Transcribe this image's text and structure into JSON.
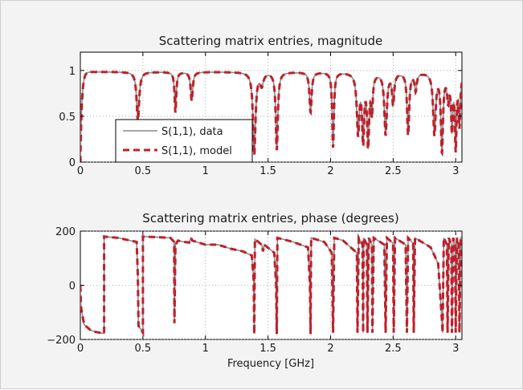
{
  "chart_data": [
    {
      "type": "line",
      "title": "Scattering matrix entries, magnitude",
      "xlabel": "",
      "ylabel": "",
      "xlim": [
        0,
        3.05
      ],
      "ylim": [
        0,
        1.2
      ],
      "xticks": [
        0,
        0.5,
        1,
        1.5,
        2,
        2.5,
        3
      ],
      "xtick_labels": [
        "0",
        "0.5",
        "1",
        "1.5",
        "2",
        "2.5",
        "3"
      ],
      "yticks": [
        0,
        0.5,
        1
      ],
      "ytick_labels": [
        "0",
        "0.5",
        "1"
      ],
      "grid": true,
      "legend_position": "lower-left",
      "baseline": 0.985,
      "resonances": [
        {
          "f": 0.46,
          "min": 0.45,
          "w": 0.012
        },
        {
          "f": 0.76,
          "min": 0.55,
          "w": 0.008
        },
        {
          "f": 0.89,
          "min": 0.68,
          "w": 0.01
        },
        {
          "f": 1.39,
          "min": 0.08,
          "w": 0.012
        },
        {
          "f": 1.45,
          "min": 0.86,
          "w": 0.015
        },
        {
          "f": 1.57,
          "min": 0.13,
          "w": 0.01
        },
        {
          "f": 1.84,
          "min": 0.55,
          "w": 0.01
        },
        {
          "f": 2.02,
          "min": 0.16,
          "w": 0.008
        },
        {
          "f": 2.22,
          "min": 0.3,
          "w": 0.012
        },
        {
          "f": 2.26,
          "min": 0.2,
          "w": 0.01
        },
        {
          "f": 2.3,
          "min": 0.16,
          "w": 0.01
        },
        {
          "f": 2.33,
          "min": 0.55,
          "w": 0.008
        },
        {
          "f": 2.44,
          "min": 0.3,
          "w": 0.012
        },
        {
          "f": 2.5,
          "min": 0.65,
          "w": 0.01
        },
        {
          "f": 2.62,
          "min": 0.3,
          "w": 0.01
        },
        {
          "f": 2.68,
          "min": 0.8,
          "w": 0.01
        },
        {
          "f": 2.83,
          "min": 0.3,
          "w": 0.012
        },
        {
          "f": 2.89,
          "min": 0.1,
          "w": 0.01
        },
        {
          "f": 2.94,
          "min": 0.7,
          "w": 0.01
        },
        {
          "f": 2.97,
          "min": 0.35,
          "w": 0.008
        },
        {
          "f": 3.0,
          "min": 0.12,
          "w": 0.008
        },
        {
          "f": 3.03,
          "min": 0.4,
          "w": 0.008
        }
      ],
      "series": [
        {
          "name": "S(1,1), data",
          "color": "#8c8c8c",
          "style": "solid"
        },
        {
          "name": "S(1,1), model",
          "color": "#c0202a",
          "style": "dashed"
        }
      ]
    },
    {
      "type": "line",
      "title": "Scattering matrix entries, phase (degrees)",
      "xlabel": "Frequency [GHz]",
      "ylabel": "",
      "xlim": [
        0,
        3.05
      ],
      "ylim": [
        -200,
        200
      ],
      "xticks": [
        0,
        0.5,
        1,
        1.5,
        2,
        2.5,
        3
      ],
      "xtick_labels": [
        "0",
        "0.5",
        "1",
        "1.5",
        "2",
        "2.5",
        "3"
      ],
      "yticks": [
        -200,
        0,
        200
      ],
      "ytick_labels": [
        "−200",
        "0",
        "200"
      ],
      "grid": true,
      "points": [
        [
          0.0,
          0
        ],
        [
          0.005,
          -80
        ],
        [
          0.03,
          -145
        ],
        [
          0.08,
          -165
        ],
        [
          0.12,
          -172
        ],
        [
          0.19,
          -178
        ],
        [
          0.19,
          180
        ],
        [
          0.3,
          175
        ],
        [
          0.45,
          160
        ],
        [
          0.46,
          30
        ],
        [
          0.465,
          -150
        ],
        [
          0.5,
          -175
        ],
        [
          0.5,
          180
        ],
        [
          0.6,
          178
        ],
        [
          0.72,
          175
        ],
        [
          0.75,
          160
        ],
        [
          0.752,
          -140
        ],
        [
          0.76,
          150
        ],
        [
          0.78,
          165
        ],
        [
          0.83,
          160
        ],
        [
          0.87,
          158
        ],
        [
          0.885,
          175
        ],
        [
          0.895,
          165
        ],
        [
          1.0,
          150
        ],
        [
          1.1,
          150
        ],
        [
          1.2,
          135
        ],
        [
          1.3,
          125
        ],
        [
          1.37,
          110
        ],
        [
          1.385,
          20
        ],
        [
          1.39,
          -180
        ],
        [
          1.395,
          170
        ],
        [
          1.45,
          150
        ],
        [
          1.46,
          125
        ],
        [
          1.47,
          150
        ],
        [
          1.55,
          120
        ],
        [
          1.565,
          0
        ],
        [
          1.57,
          -180
        ],
        [
          1.575,
          175
        ],
        [
          1.7,
          160
        ],
        [
          1.82,
          140
        ],
        [
          1.835,
          0
        ],
        [
          1.84,
          -180
        ],
        [
          1.845,
          175
        ],
        [
          1.95,
          160
        ],
        [
          2.01,
          120
        ],
        [
          2.02,
          -175
        ],
        [
          2.03,
          175
        ],
        [
          2.1,
          165
        ],
        [
          2.21,
          120
        ],
        [
          2.215,
          -175
        ],
        [
          2.225,
          175
        ],
        [
          2.255,
          150
        ],
        [
          2.26,
          -175
        ],
        [
          2.265,
          175
        ],
        [
          2.29,
          150
        ],
        [
          2.295,
          -175
        ],
        [
          2.305,
          175
        ],
        [
          2.33,
          150
        ],
        [
          2.335,
          -175
        ],
        [
          2.345,
          175
        ],
        [
          2.43,
          150
        ],
        [
          2.44,
          -175
        ],
        [
          2.45,
          175
        ],
        [
          2.5,
          155
        ],
        [
          2.505,
          -175
        ],
        [
          2.515,
          175
        ],
        [
          2.6,
          150
        ],
        [
          2.61,
          -175
        ],
        [
          2.62,
          175
        ],
        [
          2.66,
          155
        ],
        [
          2.665,
          -175
        ],
        [
          2.675,
          175
        ],
        [
          2.8,
          140
        ],
        [
          2.86,
          80
        ],
        [
          2.89,
          -130
        ],
        [
          2.895,
          -175
        ],
        [
          2.905,
          175
        ],
        [
          2.93,
          150
        ],
        [
          2.935,
          -175
        ],
        [
          2.945,
          175
        ],
        [
          2.965,
          150
        ],
        [
          2.97,
          -175
        ],
        [
          2.98,
          175
        ],
        [
          2.995,
          150
        ],
        [
          3.0,
          -175
        ],
        [
          3.01,
          175
        ],
        [
          3.025,
          150
        ],
        [
          3.03,
          -175
        ],
        [
          3.04,
          175
        ],
        [
          3.05,
          170
        ]
      ],
      "series": [
        {
          "name": "S(1,1), data",
          "color": "#8c8c8c",
          "style": "solid"
        },
        {
          "name": "S(1,1), model",
          "color": "#c0202a",
          "style": "dashed"
        }
      ]
    }
  ]
}
